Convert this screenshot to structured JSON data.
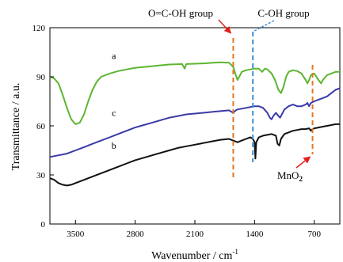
{
  "chart_data": {
    "type": "line",
    "title": "",
    "xlabel": "Wavenumber / cm",
    "xlabel_sup": "-1",
    "ylabel": "Transmittance / a.u.",
    "x_reversed": true,
    "xlim": [
      3800,
      400
    ],
    "ylim": [
      0,
      120
    ],
    "xticks": [
      3500,
      2800,
      2100,
      1400,
      700
    ],
    "yticks": [
      0,
      30,
      60,
      90,
      120
    ],
    "grid": false,
    "legend": "none",
    "series": [
      {
        "name": "a",
        "color": "#5cb531",
        "points": [
          [
            3800,
            90
          ],
          [
            3750,
            89
          ],
          [
            3700,
            86
          ],
          [
            3650,
            79
          ],
          [
            3600,
            71
          ],
          [
            3550,
            64
          ],
          [
            3500,
            61
          ],
          [
            3450,
            62
          ],
          [
            3400,
            67
          ],
          [
            3350,
            75
          ],
          [
            3300,
            82
          ],
          [
            3250,
            87
          ],
          [
            3200,
            90
          ],
          [
            3100,
            92
          ],
          [
            3000,
            93.5
          ],
          [
            2900,
            94.5
          ],
          [
            2800,
            95.5
          ],
          [
            2700,
            96
          ],
          [
            2600,
            96.5
          ],
          [
            2500,
            97
          ],
          [
            2400,
            97.5
          ],
          [
            2300,
            97.7
          ],
          [
            2250,
            97.8
          ],
          [
            2220,
            95
          ],
          [
            2200,
            97.8
          ],
          [
            2100,
            98
          ],
          [
            2000,
            98.2
          ],
          [
            1900,
            98.5
          ],
          [
            1800,
            98.8
          ],
          [
            1700,
            98.6
          ],
          [
            1650,
            96
          ],
          [
            1620,
            91
          ],
          [
            1600,
            88
          ],
          [
            1580,
            90
          ],
          [
            1550,
            93
          ],
          [
            1500,
            94
          ],
          [
            1450,
            94.5
          ],
          [
            1400,
            95
          ],
          [
            1350,
            95
          ],
          [
            1310,
            93
          ],
          [
            1280,
            95
          ],
          [
            1250,
            94.5
          ],
          [
            1200,
            92
          ],
          [
            1160,
            88
          ],
          [
            1120,
            82
          ],
          [
            1090,
            80
          ],
          [
            1060,
            84
          ],
          [
            1030,
            90
          ],
          [
            1000,
            93
          ],
          [
            950,
            94
          ],
          [
            900,
            93.5
          ],
          [
            850,
            92
          ],
          [
            800,
            88
          ],
          [
            780,
            86
          ],
          [
            760,
            88
          ],
          [
            740,
            91
          ],
          [
            700,
            92
          ],
          [
            650,
            88
          ],
          [
            620,
            86
          ],
          [
            600,
            88
          ],
          [
            550,
            91
          ],
          [
            500,
            92
          ],
          [
            450,
            93
          ],
          [
            400,
            93
          ]
        ]
      },
      {
        "name": "c",
        "color": "#3a3aa8",
        "points": [
          [
            3800,
            41
          ],
          [
            3700,
            42
          ],
          [
            3600,
            43
          ],
          [
            3500,
            45
          ],
          [
            3400,
            47
          ],
          [
            3300,
            49
          ],
          [
            3200,
            51
          ],
          [
            3100,
            53
          ],
          [
            3000,
            55
          ],
          [
            2900,
            57
          ],
          [
            2800,
            59
          ],
          [
            2700,
            60.5
          ],
          [
            2600,
            62
          ],
          [
            2500,
            63.5
          ],
          [
            2400,
            65
          ],
          [
            2300,
            66
          ],
          [
            2200,
            67
          ],
          [
            2100,
            67.5
          ],
          [
            2000,
            68
          ],
          [
            1900,
            68.5
          ],
          [
            1800,
            69
          ],
          [
            1700,
            69.5
          ],
          [
            1650,
            68
          ],
          [
            1620,
            69.5
          ],
          [
            1600,
            70
          ],
          [
            1500,
            71
          ],
          [
            1450,
            71.5
          ],
          [
            1400,
            72
          ],
          [
            1350,
            72
          ],
          [
            1300,
            71
          ],
          [
            1250,
            68
          ],
          [
            1220,
            65
          ],
          [
            1200,
            64
          ],
          [
            1180,
            66
          ],
          [
            1150,
            68
          ],
          [
            1120,
            66
          ],
          [
            1100,
            65
          ],
          [
            1080,
            67
          ],
          [
            1050,
            70
          ],
          [
            1000,
            72
          ],
          [
            950,
            73
          ],
          [
            900,
            72
          ],
          [
            850,
            72
          ],
          [
            800,
            73
          ],
          [
            780,
            74
          ],
          [
            760,
            72
          ],
          [
            740,
            74
          ],
          [
            700,
            75
          ],
          [
            650,
            76
          ],
          [
            600,
            77
          ],
          [
            550,
            78
          ],
          [
            500,
            80
          ],
          [
            450,
            82
          ],
          [
            400,
            83
          ]
        ]
      },
      {
        "name": "b",
        "color": "#111111",
        "points": [
          [
            3800,
            28
          ],
          [
            3750,
            27
          ],
          [
            3700,
            25
          ],
          [
            3650,
            24
          ],
          [
            3600,
            23.5
          ],
          [
            3550,
            24
          ],
          [
            3500,
            25
          ],
          [
            3400,
            27
          ],
          [
            3300,
            29
          ],
          [
            3200,
            31
          ],
          [
            3100,
            33
          ],
          [
            3000,
            35
          ],
          [
            2900,
            37
          ],
          [
            2800,
            39
          ],
          [
            2700,
            40.5
          ],
          [
            2600,
            42
          ],
          [
            2500,
            43.5
          ],
          [
            2400,
            45
          ],
          [
            2300,
            46.5
          ],
          [
            2200,
            47.5
          ],
          [
            2100,
            48.5
          ],
          [
            2000,
            49.5
          ],
          [
            1900,
            50.5
          ],
          [
            1800,
            51.5
          ],
          [
            1700,
            52
          ],
          [
            1650,
            51
          ],
          [
            1600,
            50
          ],
          [
            1550,
            51
          ],
          [
            1500,
            52
          ],
          [
            1450,
            53
          ],
          [
            1420,
            52
          ],
          [
            1400,
            50
          ],
          [
            1390,
            40
          ],
          [
            1380,
            50
          ],
          [
            1350,
            53
          ],
          [
            1300,
            54
          ],
          [
            1250,
            54.5
          ],
          [
            1200,
            55
          ],
          [
            1150,
            54
          ],
          [
            1130,
            49
          ],
          [
            1110,
            48
          ],
          [
            1090,
            52
          ],
          [
            1050,
            55
          ],
          [
            1000,
            56
          ],
          [
            950,
            57
          ],
          [
            900,
            57.5
          ],
          [
            850,
            58
          ],
          [
            800,
            58
          ],
          [
            760,
            58.5
          ],
          [
            740,
            57
          ],
          [
            720,
            58
          ],
          [
            700,
            58.5
          ],
          [
            650,
            59
          ],
          [
            600,
            59.5
          ],
          [
            550,
            60
          ],
          [
            500,
            60.5
          ],
          [
            450,
            61
          ],
          [
            400,
            61
          ]
        ]
      }
    ],
    "series_labels": [
      {
        "text": "a",
        "x": 3050,
        "y": 101
      },
      {
        "text": "c",
        "x": 3050,
        "y": 66
      },
      {
        "text": "b",
        "x": 3050,
        "y": 46
      }
    ],
    "annotations": [
      {
        "text": "O=C-OH group",
        "color": "#e8761e",
        "line_x": 1650
      },
      {
        "text": "C-OH group",
        "color": "#3b8fd9",
        "line_x": 1420
      },
      {
        "text": "MnO",
        "sub": "2",
        "color": "#e8761e",
        "line_x": 720
      }
    ]
  }
}
